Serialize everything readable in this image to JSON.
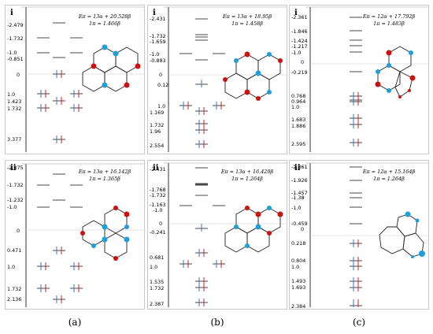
{
  "columns": [
    {
      "caption": "(a)",
      "panels": [
        {
          "roman": "i",
          "energy_line1": "Eπ = 13α + 20.528β",
          "energy_line2": "1π = 1.466β",
          "levels": [
            {
              "label": "-2.479"
            },
            {
              "label": "-1.732"
            },
            {
              "label": "-1.0"
            },
            {
              "label": "-0.851"
            },
            {
              "label": "0"
            },
            {
              "label": "1.0"
            },
            {
              "label": "1.423"
            },
            {
              "label": "1.732"
            },
            {
              "label": "3.377"
            }
          ]
        },
        {
          "roman": "ii",
          "energy_line1": "Eπ = 13α + 16.142β",
          "energy_line2": "1π = 1.365β",
          "levels": [
            {
              "label": "-2.375"
            },
            {
              "label": "-1.732"
            },
            {
              "label": "-1.232"
            },
            {
              "label": "-1.0"
            },
            {
              "label": "0"
            },
            {
              "label": "0.471"
            },
            {
              "label": "1.0"
            },
            {
              "label": "1.732"
            },
            {
              "label": "2.136"
            }
          ]
        }
      ]
    },
    {
      "caption": "(b)",
      "panels": [
        {
          "roman": "i",
          "energy_line1": "Eπ = 13α + 18.95β",
          "energy_line2": "1π = 1.458β",
          "levels": [
            {
              "label": "-2.431"
            },
            {
              "label": "-1.732"
            },
            {
              "label": "-1.659"
            },
            {
              "label": "-1.0"
            },
            {
              "label": "-0.883"
            },
            {
              "label": "0"
            },
            {
              "label": "0.12"
            },
            {
              "label": "1.0"
            },
            {
              "label": "1.169"
            },
            {
              "label": "1.732"
            },
            {
              "label": "1.96"
            },
            {
              "label": "2.554"
            }
          ]
        },
        {
          "roman": "ii",
          "energy_line1": "Eπ = 13α + 16.429β",
          "energy_line2": "1π = 1.264β",
          "levels": [
            {
              "label": "-2.431"
            },
            {
              "label": "-1.768"
            },
            {
              "label": "-1.732"
            },
            {
              "label": "-1.163"
            },
            {
              "label": "-1.0"
            },
            {
              "label": "0"
            },
            {
              "label": "-0.241"
            },
            {
              "label": "0.681"
            },
            {
              "label": "1.0"
            },
            {
              "label": "1.535"
            },
            {
              "label": "1.732"
            },
            {
              "label": "2.387"
            }
          ]
        }
      ]
    },
    {
      "caption": "(c)",
      "panels": [
        {
          "roman": "i",
          "energy_line1": "Eπ = 12α + 17.792β",
          "energy_line2": "1π = 1.483β",
          "levels": [
            {
              "label": "-2.361"
            },
            {
              "label": "-1.846"
            },
            {
              "label": "-1.424"
            },
            {
              "label": "-1.217"
            },
            {
              "label": "-1.0"
            },
            {
              "label": "0"
            },
            {
              "label": "-0.219"
            },
            {
              "label": "0.768"
            },
            {
              "label": "0.964"
            },
            {
              "label": "1.0"
            },
            {
              "label": "1.683"
            },
            {
              "label": "1.886"
            },
            {
              "label": "2.595"
            }
          ]
        },
        {
          "roman": "ii",
          "energy_line1": "Eπ = 12α + 15.164β",
          "energy_line2": "1π = 1.264β",
          "levels": [
            {
              "label": "-2.361"
            },
            {
              "label": "-1.926"
            },
            {
              "label": "-1.457"
            },
            {
              "label": "-1.38"
            },
            {
              "label": "-1.0"
            },
            {
              "label": "0"
            },
            {
              "label": "-0.459"
            },
            {
              "label": "0.218"
            },
            {
              "label": "0.804"
            },
            {
              "label": "1.0"
            },
            {
              "label": "1.493"
            },
            {
              "label": "1.693"
            },
            {
              "label": "2.384"
            }
          ]
        }
      ]
    }
  ],
  "colors": {
    "up_arrow": "#3a70c8",
    "down_arrow": "#d02020",
    "red_atom": "#cc1111",
    "blue_atom": "#1f9ed8"
  }
}
